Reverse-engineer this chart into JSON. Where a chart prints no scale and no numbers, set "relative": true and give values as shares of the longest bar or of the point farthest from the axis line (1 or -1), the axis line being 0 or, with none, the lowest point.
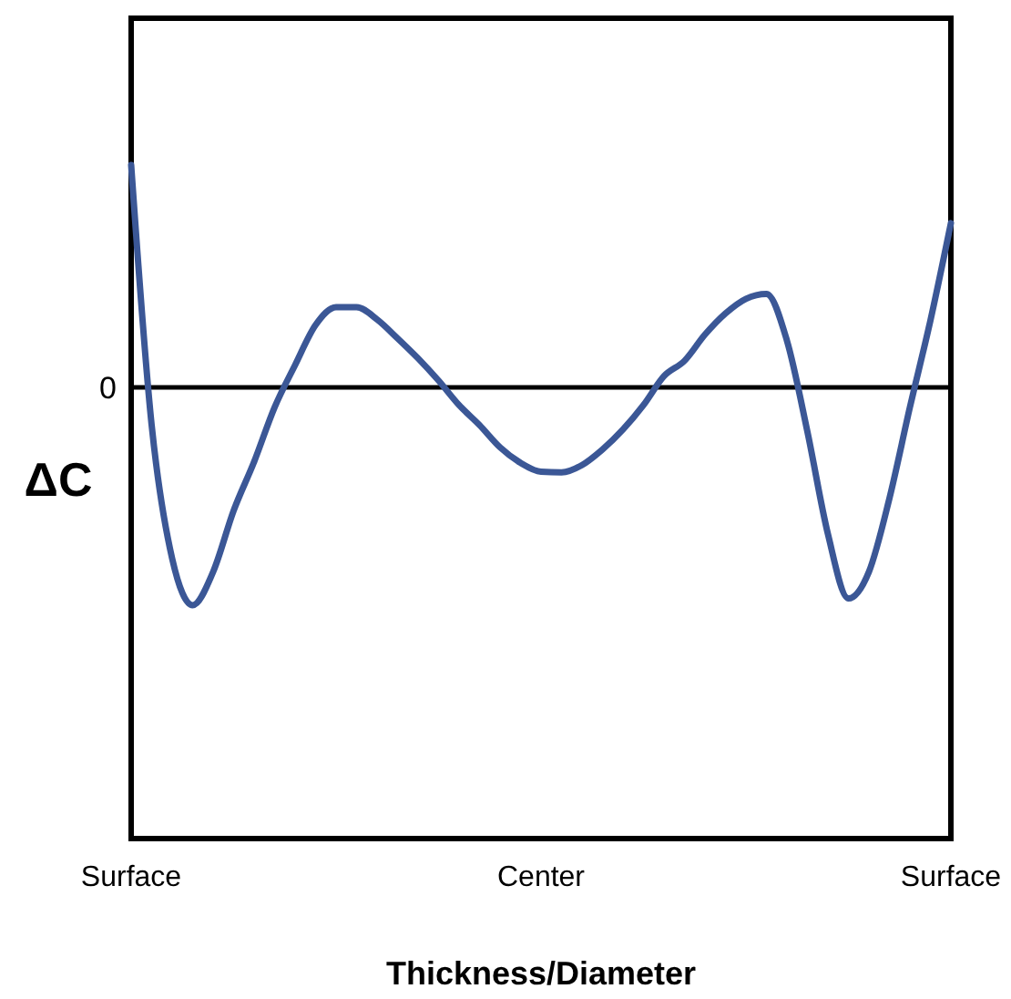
{
  "chart_data": {
    "type": "line",
    "relative": true,
    "xlabel": "Thickness/Diameter",
    "ylabel": "ΔC",
    "categories": [
      "Surface",
      null,
      null,
      null,
      null,
      null,
      null,
      null,
      null,
      null,
      null,
      null,
      null,
      null,
      null,
      null,
      null,
      null,
      null,
      null,
      "Center",
      null,
      null,
      null,
      null,
      null,
      null,
      null,
      null,
      null,
      null,
      null,
      null,
      null,
      null,
      null,
      null,
      null,
      null,
      null,
      "Surface"
    ],
    "ref_lines": [
      {
        "axis": "y",
        "value": 0,
        "label": "0",
        "color": "#000000"
      }
    ],
    "series": [
      {
        "color": "#3b5796",
        "values": [
          1,
          -0.17,
          -0.77,
          -0.98,
          -0.83,
          -0.555,
          -0.335,
          -0.09,
          0.1,
          0.28,
          0.36,
          0.36,
          0.305,
          0.22,
          0.13,
          0.03,
          -0.08,
          -0.17,
          -0.27,
          -0.34,
          -0.38,
          -0.383,
          -0.35,
          -0.28,
          -0.19,
          -0.08,
          0.05,
          0.119,
          0.237,
          0.332,
          0.398,
          0.42,
          0.21,
          -0.2,
          -0.66,
          -0.95,
          -0.83,
          -0.5,
          -0.09,
          0.3,
          0.738
        ]
      }
    ]
  }
}
